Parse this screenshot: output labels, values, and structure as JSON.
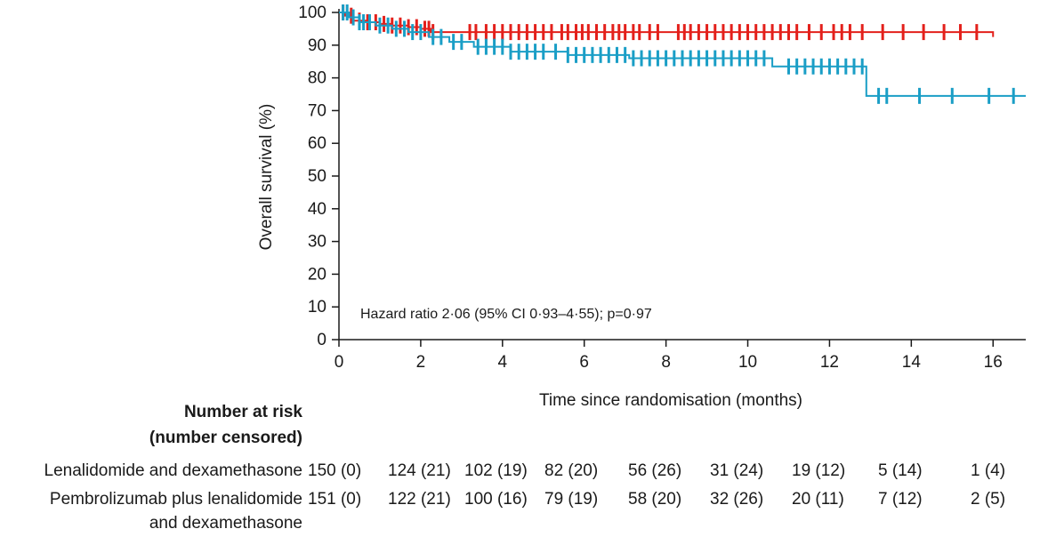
{
  "chart_data": {
    "type": "line",
    "subtype": "kaplan-meier",
    "ylabel": "Overall survival (%)",
    "xlabel": "Time since randomisation (months)",
    "xlim": [
      0,
      16.8
    ],
    "ylim": [
      0,
      100
    ],
    "xticks": [
      0,
      2,
      4,
      6,
      8,
      10,
      12,
      14,
      16
    ],
    "yticks": [
      0,
      10,
      20,
      30,
      40,
      50,
      60,
      70,
      80,
      90,
      100
    ],
    "grid": false,
    "annotation": "Hazard ratio 2·06 (95% CI 0·93–4·55); p=0·97",
    "series": [
      {
        "name": "Lenalidomide and dexamethasone",
        "color": "#e3201b",
        "steps": [
          [
            0,
            100
          ],
          [
            0.15,
            99
          ],
          [
            0.35,
            97.5
          ],
          [
            0.7,
            97
          ],
          [
            1.0,
            96.5
          ],
          [
            1.3,
            96
          ],
          [
            1.7,
            95.5
          ],
          [
            2.0,
            95
          ],
          [
            2.25,
            94
          ],
          [
            16.0,
            92.5
          ]
        ],
        "censored": [
          0.1,
          0.3,
          0.5,
          0.7,
          0.9,
          1.1,
          1.3,
          1.5,
          1.7,
          1.9,
          2.1,
          2.2,
          2.3,
          3.2,
          3.35,
          3.6,
          3.8,
          4.0,
          4.2,
          4.4,
          4.6,
          4.8,
          5.0,
          5.2,
          5.45,
          5.6,
          5.8,
          5.95,
          6.1,
          6.3,
          6.5,
          6.7,
          6.85,
          7.0,
          7.2,
          7.35,
          7.6,
          7.8,
          8.3,
          8.45,
          8.6,
          8.8,
          9.0,
          9.2,
          9.4,
          9.6,
          9.8,
          10.0,
          10.2,
          10.4,
          10.6,
          10.8,
          11.0,
          11.2,
          11.5,
          11.8,
          12.1,
          12.3,
          12.5,
          12.8,
          13.3,
          13.8,
          14.3,
          14.8,
          15.2,
          15.6
        ]
      },
      {
        "name": "Pembrolizumab plus lenalidomide and dexamethasone",
        "color": "#1a9ec6",
        "steps": [
          [
            0,
            100
          ],
          [
            0.25,
            98.5
          ],
          [
            0.5,
            97
          ],
          [
            0.9,
            96
          ],
          [
            1.3,
            95
          ],
          [
            1.7,
            94
          ],
          [
            2.2,
            92.5
          ],
          [
            2.7,
            91
          ],
          [
            3.3,
            89.5
          ],
          [
            4.2,
            88
          ],
          [
            5.6,
            87
          ],
          [
            7.1,
            86
          ],
          [
            10.6,
            83.5
          ],
          [
            12.9,
            74.5
          ],
          [
            16.8,
            74.5
          ]
        ],
        "censored": [
          0.1,
          0.2,
          0.35,
          0.5,
          0.6,
          0.75,
          1.0,
          1.2,
          1.4,
          1.6,
          1.8,
          2.0,
          2.3,
          2.5,
          2.8,
          3.0,
          3.4,
          3.6,
          3.8,
          4.0,
          4.2,
          4.4,
          4.6,
          4.8,
          5.0,
          5.3,
          5.6,
          5.8,
          6.0,
          6.2,
          6.4,
          6.6,
          6.8,
          7.0,
          7.2,
          7.4,
          7.6,
          7.8,
          8.0,
          8.2,
          8.4,
          8.6,
          8.8,
          9.0,
          9.2,
          9.4,
          9.6,
          9.8,
          10.0,
          10.2,
          10.4,
          11.0,
          11.2,
          11.4,
          11.6,
          11.8,
          12.0,
          12.2,
          12.4,
          12.6,
          12.8,
          13.2,
          13.4,
          14.2,
          15.0,
          15.9,
          16.5
        ]
      }
    ]
  },
  "risk_table": {
    "title_line1": "Number at risk",
    "title_line2": "(number censored)",
    "rows": [
      {
        "label_lines": [
          "Lenalidomide and dexamethasone"
        ],
        "values": [
          "150 (0)",
          "124 (21)",
          "102 (19)",
          "82 (20)",
          "56 (26)",
          "31 (24)",
          "19 (12)",
          "5 (14)",
          "1 (4)"
        ]
      },
      {
        "label_lines": [
          "Pembrolizumab plus lenalidomide",
          "and dexamethasone"
        ],
        "values": [
          "151 (0)",
          "122 (21)",
          "100 (16)",
          "79 (19)",
          "58 (20)",
          "32 (26)",
          "20 (11)",
          "7 (12)",
          "2 (5)"
        ]
      }
    ]
  }
}
